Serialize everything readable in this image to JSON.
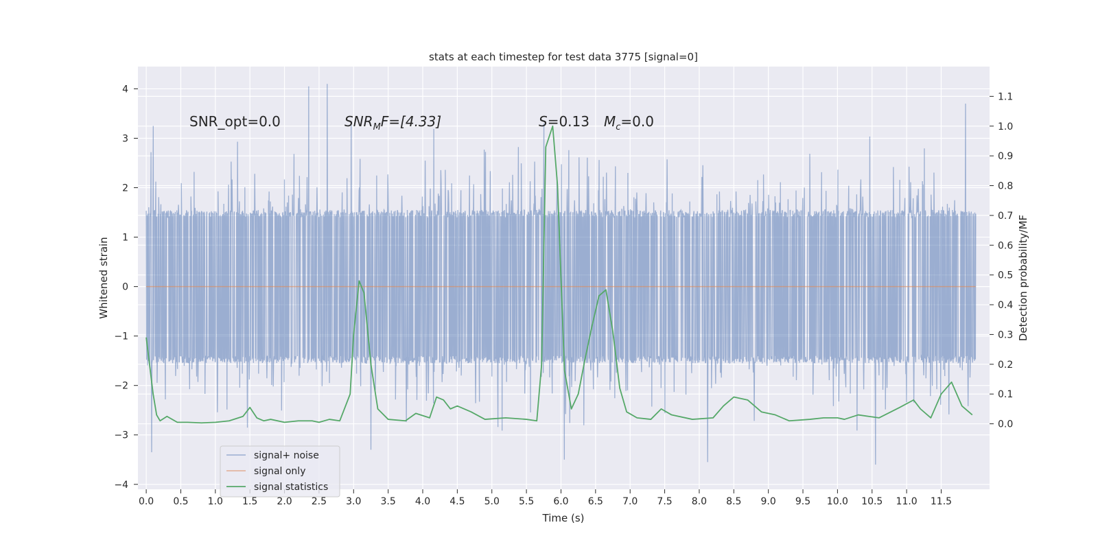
{
  "chart_data": {
    "type": "line",
    "title": "stats at each timestep for test data 3775 [signal=0]",
    "xlabel": "Time (s)",
    "ylabel": "Whitened strain",
    "y2label": "Detection probability/MF",
    "xlim": [
      -0.12,
      12.2
    ],
    "ylim": [
      -4.1,
      4.45
    ],
    "y2lim": [
      -0.22,
      1.2
    ],
    "xticks": [
      0.0,
      0.5,
      1.0,
      1.5,
      2.0,
      2.5,
      3.0,
      3.5,
      4.0,
      4.5,
      5.0,
      5.5,
      6.0,
      6.5,
      7.0,
      7.5,
      8.0,
      8.5,
      9.0,
      9.5,
      10.0,
      10.5,
      11.0,
      11.5
    ],
    "xtick_labels": [
      "0.0",
      "0.5",
      "1.0",
      "1.5",
      "2.0",
      "2.5",
      "3.0",
      "3.5",
      "4.0",
      "4.5",
      "5.0",
      "5.5",
      "6.0",
      "6.5",
      "7.0",
      "7.5",
      "8.0",
      "8.5",
      "9.0",
      "9.5",
      "10.0",
      "10.5",
      "11.0",
      "11.5"
    ],
    "yticks": [
      -4,
      -3,
      -2,
      -1,
      0,
      1,
      2,
      3,
      4
    ],
    "ytick_labels": [
      "−4",
      "−3",
      "−2",
      "−1",
      "0",
      "1",
      "2",
      "3",
      "4"
    ],
    "y2ticks": [
      0.0,
      0.1,
      0.2,
      0.3,
      0.4,
      0.5,
      0.6,
      0.7,
      0.8,
      0.9,
      1.0,
      1.1
    ],
    "y2tick_labels": [
      "0.0",
      "0.1",
      "0.2",
      "0.3",
      "0.4",
      "0.5",
      "0.6",
      "0.7",
      "0.8",
      "0.9",
      "1.0",
      "1.1"
    ],
    "grid": true,
    "legend_position": "lower-left",
    "series": [
      {
        "name": "signal+ noise",
        "color": "#4c72b0",
        "axis": "left",
        "style": "dense whitened noise, approx. uniform band ±1.4 with spikes to about ±4",
        "x_range": [
          0.0,
          12.0
        ],
        "spikes": [
          {
            "x": 0.1,
            "y": 3.25
          },
          {
            "x": 2.35,
            "y": 4.05
          },
          {
            "x": 2.62,
            "y": 4.1
          },
          {
            "x": 11.85,
            "y": 3.7
          },
          {
            "x": 6.05,
            "y": -3.5
          },
          {
            "x": 8.12,
            "y": -3.55
          },
          {
            "x": 10.55,
            "y": -3.6
          },
          {
            "x": 0.08,
            "y": -3.35
          },
          {
            "x": 3.25,
            "y": -3.3
          }
        ]
      },
      {
        "name": "signal only",
        "color": "#dd8452",
        "axis": "left",
        "x": [
          0.0,
          12.0
        ],
        "y": [
          0.0,
          0.0
        ]
      },
      {
        "name": "signal statistics",
        "color": "#55a868",
        "axis": "right",
        "x": [
          0.0,
          0.1,
          0.15,
          0.2,
          0.3,
          0.45,
          0.6,
          0.8,
          1.0,
          1.2,
          1.4,
          1.5,
          1.6,
          1.7,
          1.8,
          2.0,
          2.2,
          2.4,
          2.5,
          2.65,
          2.8,
          2.95,
          3.0,
          3.08,
          3.15,
          3.25,
          3.35,
          3.5,
          3.75,
          3.9,
          4.1,
          4.2,
          4.3,
          4.4,
          4.5,
          4.7,
          4.9,
          5.2,
          5.5,
          5.65,
          5.72,
          5.78,
          5.88,
          5.95,
          6.05,
          6.15,
          6.25,
          6.35,
          6.45,
          6.55,
          6.65,
          6.75,
          6.85,
          6.95,
          7.1,
          7.3,
          7.45,
          7.6,
          7.9,
          8.2,
          8.35,
          8.5,
          8.7,
          8.9,
          9.1,
          9.3,
          9.6,
          9.8,
          10.0,
          10.1,
          10.3,
          10.6,
          10.9,
          11.1,
          11.2,
          11.35,
          11.5,
          11.65,
          11.8,
          11.95
        ],
        "y": [
          0.29,
          0.1,
          0.03,
          0.01,
          0.025,
          0.005,
          0.005,
          0.003,
          0.005,
          0.01,
          0.025,
          0.055,
          0.02,
          0.01,
          0.015,
          0.005,
          0.01,
          0.01,
          0.005,
          0.015,
          0.01,
          0.1,
          0.3,
          0.48,
          0.44,
          0.2,
          0.05,
          0.015,
          0.01,
          0.035,
          0.02,
          0.09,
          0.08,
          0.05,
          0.06,
          0.04,
          0.015,
          0.02,
          0.015,
          0.01,
          0.2,
          0.93,
          1.0,
          0.8,
          0.18,
          0.05,
          0.1,
          0.22,
          0.33,
          0.43,
          0.45,
          0.31,
          0.12,
          0.04,
          0.02,
          0.015,
          0.05,
          0.03,
          0.015,
          0.02,
          0.06,
          0.09,
          0.08,
          0.04,
          0.03,
          0.01,
          0.015,
          0.02,
          0.02,
          0.015,
          0.03,
          0.02,
          0.055,
          0.08,
          0.05,
          0.02,
          0.1,
          0.14,
          0.06,
          0.03
        ]
      }
    ],
    "annotations": [
      {
        "id": "snr-opt",
        "text": "SNR_opt=0.0"
      },
      {
        "id": "snr-mf",
        "main": "SNR",
        "sub": "M",
        "rest": "F=[4.33]"
      },
      {
        "id": "s-stat",
        "main": "S",
        "rest": "=0.13"
      },
      {
        "id": "mc",
        "main": "M",
        "sub": "c",
        "rest": "=0.0"
      }
    ],
    "colors": {
      "axes_bg": "#eaeaf2",
      "grid": "#ffffff",
      "text": "#262626"
    }
  }
}
